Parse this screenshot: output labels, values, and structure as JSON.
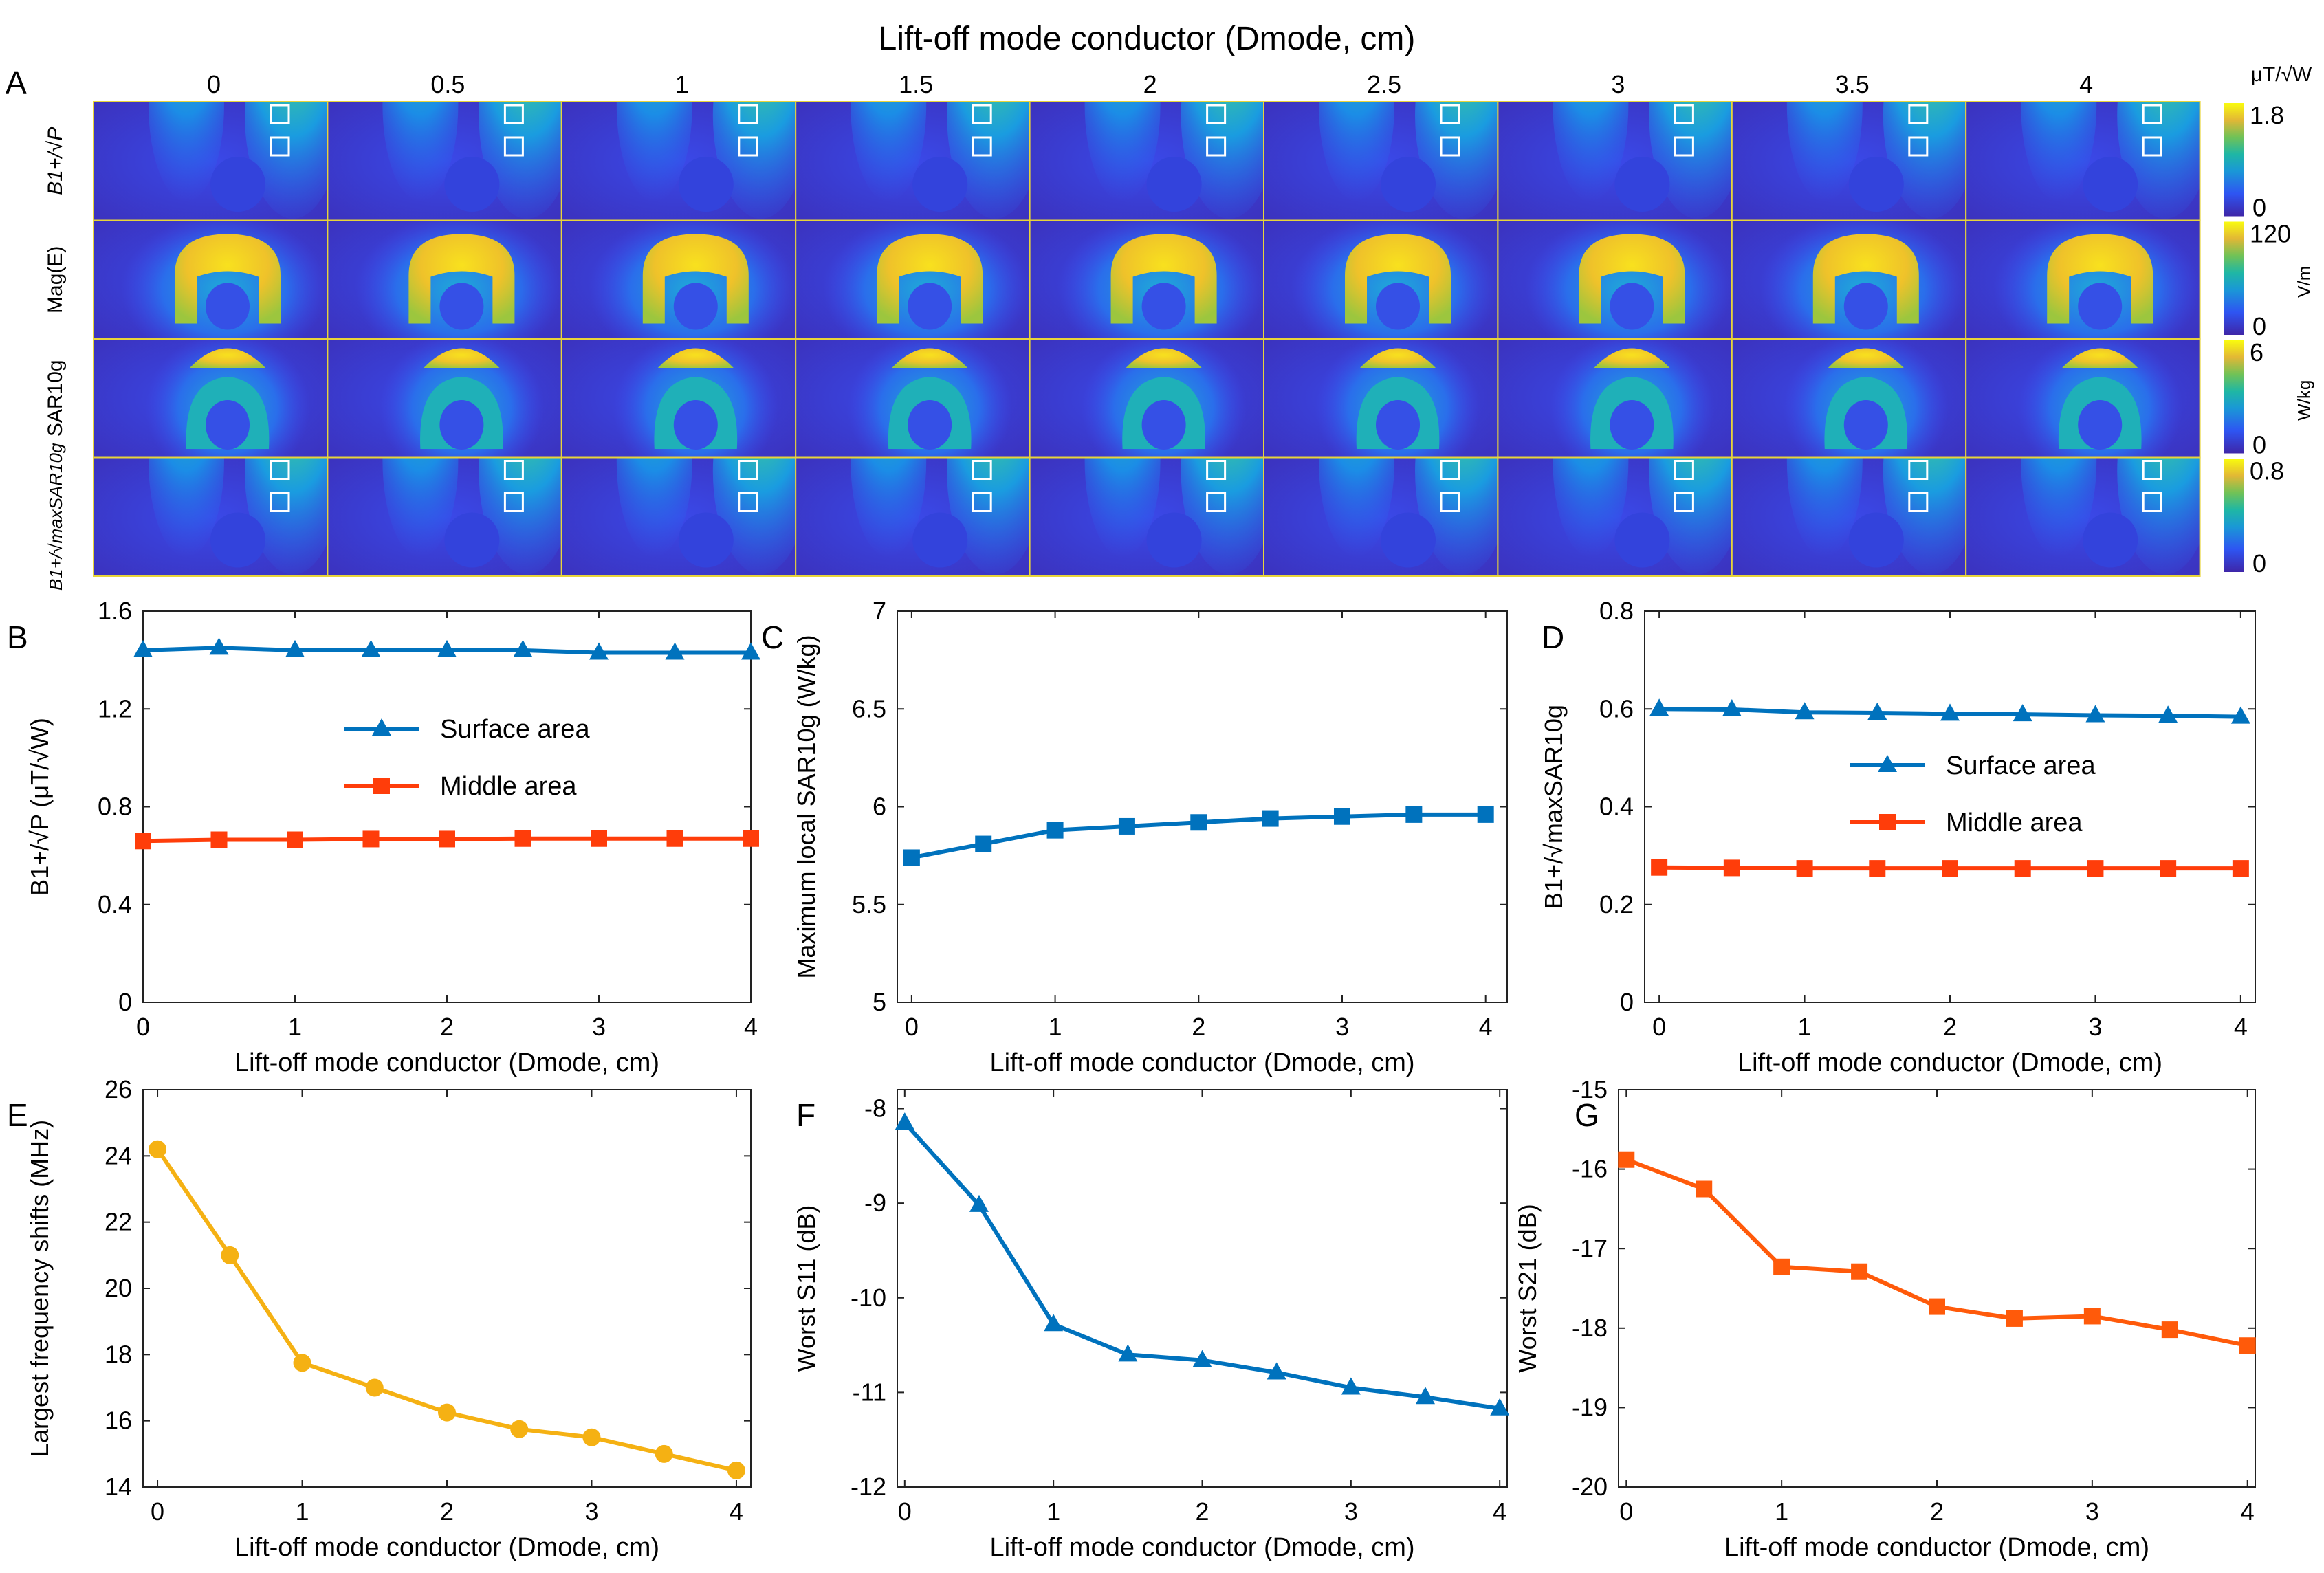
{
  "figure_title": "Lift-off mode conductor (Dmode, cm)",
  "panel_a": {
    "letter": "A",
    "columns": [
      "0",
      "0.5",
      "1",
      "1.5",
      "2",
      "2.5",
      "3",
      "3.5",
      "4"
    ],
    "rows": [
      {
        "label": "B1+/√P",
        "colorbar_max": "1.8",
        "colorbar_min": "0",
        "unit": "μT/√W",
        "kind": "b1"
      },
      {
        "label": "Mag(E)",
        "colorbar_max": "120",
        "colorbar_min": "0",
        "unit": "V/m",
        "kind": "e"
      },
      {
        "label": "SAR10g",
        "colorbar_max": "6",
        "colorbar_min": "0",
        "unit": "W/kg",
        "kind": "sar"
      },
      {
        "label": "B1+/√maxSAR10g",
        "colorbar_max": "0.8",
        "colorbar_min": "0",
        "unit": "",
        "kind": "b1"
      }
    ]
  },
  "chart_data": [
    {
      "panel": "B",
      "type": "line",
      "xlabel": "Lift-off mode conductor (Dmode, cm)",
      "ylabel": "B1+/√P (μT/√W)",
      "x": [
        0,
        0.5,
        1,
        1.5,
        2,
        2.5,
        3,
        3.5,
        4
      ],
      "xlim": [
        0,
        4
      ],
      "ylim": [
        0,
        1.6
      ],
      "xticks": [
        "0",
        "1",
        "2",
        "3",
        "4"
      ],
      "yticks": [
        "0",
        "0.4",
        "0.8",
        "1.2",
        "1.6"
      ],
      "legend": "center-right",
      "series": [
        {
          "name": "Surface area",
          "color": "#0072BD",
          "marker": "triangle",
          "values": [
            1.44,
            1.45,
            1.44,
            1.44,
            1.44,
            1.44,
            1.43,
            1.43,
            1.43
          ]
        },
        {
          "name": "Middle area",
          "color": "#FF3D0A",
          "marker": "square",
          "values": [
            0.66,
            0.665,
            0.665,
            0.668,
            0.668,
            0.67,
            0.67,
            0.67,
            0.67
          ]
        }
      ]
    },
    {
      "panel": "C",
      "type": "line",
      "xlabel": "Lift-off mode conductor (Dmode, cm)",
      "ylabel": "Maximum local SAR10g (W/kg)",
      "x": [
        0,
        0.5,
        1,
        1.5,
        2,
        2.5,
        3,
        3.5,
        4
      ],
      "xlim": [
        -0.1,
        4.15
      ],
      "ylim": [
        5,
        7
      ],
      "xticks": [
        "0",
        "1",
        "2",
        "3",
        "4"
      ],
      "yticks": [
        "5",
        "5.5",
        "6",
        "6.5",
        "7"
      ],
      "legend": "none",
      "series": [
        {
          "name": "Maximum local SAR10g",
          "color": "#0072BD",
          "marker": "square",
          "values": [
            5.74,
            5.81,
            5.88,
            5.9,
            5.92,
            5.94,
            5.95,
            5.96,
            5.96
          ]
        }
      ]
    },
    {
      "panel": "D",
      "type": "line",
      "xlabel": "Lift-off mode conductor (Dmode, cm)",
      "ylabel": "B1+/√maxSAR10g",
      "x": [
        0,
        0.5,
        1,
        1.5,
        2,
        2.5,
        3,
        3.5,
        4
      ],
      "xlim": [
        -0.1,
        4.1
      ],
      "ylim": [
        0,
        0.8
      ],
      "xticks": [
        "0",
        "1",
        "2",
        "3",
        "4"
      ],
      "yticks": [
        "0",
        "0.2",
        "0.4",
        "0.6",
        "0.8"
      ],
      "legend": "center-right",
      "series": [
        {
          "name": "Surface area",
          "color": "#0072BD",
          "marker": "triangle",
          "values": [
            0.6,
            0.599,
            0.593,
            0.592,
            0.59,
            0.589,
            0.587,
            0.586,
            0.584
          ]
        },
        {
          "name": "Middle area",
          "color": "#FF3D0A",
          "marker": "square",
          "values": [
            0.276,
            0.275,
            0.274,
            0.274,
            0.274,
            0.274,
            0.274,
            0.274,
            0.274
          ]
        }
      ]
    },
    {
      "panel": "E",
      "type": "line",
      "xlabel": "Lift-off mode conductor (Dmode, cm)",
      "ylabel": "Largest frequency shifts (MHz)",
      "x": [
        0,
        0.5,
        1,
        1.5,
        2,
        2.5,
        3,
        3.5,
        4
      ],
      "xlim": [
        -0.1,
        4.1
      ],
      "ylim": [
        14,
        26
      ],
      "xticks": [
        "0",
        "1",
        "2",
        "3",
        "4"
      ],
      "yticks": [
        "14",
        "16",
        "18",
        "20",
        "22",
        "24",
        "26"
      ],
      "legend": "none",
      "series": [
        {
          "name": "Largest frequency shifts",
          "color": "#F5B113",
          "marker": "circle",
          "values": [
            24.2,
            21.0,
            17.75,
            17.0,
            16.25,
            15.75,
            15.5,
            15.0,
            14.5
          ]
        }
      ]
    },
    {
      "panel": "F",
      "type": "line",
      "xlabel": "Lift-off mode conductor (Dmode, cm)",
      "ylabel": "Worst S11 (dB)",
      "x": [
        0,
        0.5,
        1,
        1.5,
        2,
        2.5,
        3,
        3.5,
        4
      ],
      "xlim": [
        -0.05,
        4.05
      ],
      "ylim": [
        -12,
        -7.8
      ],
      "xticks": [
        "0",
        "1",
        "2",
        "3",
        "4"
      ],
      "yticks": [
        "-12",
        "-11",
        "-10",
        "-9",
        "-8"
      ],
      "legend": "none",
      "series": [
        {
          "name": "Worst S11",
          "color": "#0072BD",
          "marker": "triangle",
          "values": [
            -8.15,
            -9.02,
            -10.28,
            -10.6,
            -10.66,
            -10.79,
            -10.95,
            -11.05,
            -11.17
          ]
        }
      ]
    },
    {
      "panel": "G",
      "type": "line",
      "xlabel": "Lift-off mode conductor (Dmode, cm)",
      "ylabel": "Worst S21 (dB)",
      "x": [
        0,
        0.5,
        1,
        1.5,
        2,
        2.5,
        3,
        3.5,
        4
      ],
      "xlim": [
        -0.05,
        4.05
      ],
      "ylim": [
        -20,
        -15
      ],
      "xticks": [
        "0",
        "1",
        "2",
        "3",
        "4"
      ],
      "yticks": [
        "-20",
        "-19",
        "-18",
        "-17",
        "-16",
        "-15"
      ],
      "legend": "none",
      "series": [
        {
          "name": "Worst S21",
          "color": "#FF5A0A",
          "marker": "square",
          "values": [
            -15.88,
            -16.25,
            -17.23,
            -17.29,
            -17.73,
            -17.88,
            -17.85,
            -18.02,
            -18.22
          ]
        }
      ]
    }
  ]
}
